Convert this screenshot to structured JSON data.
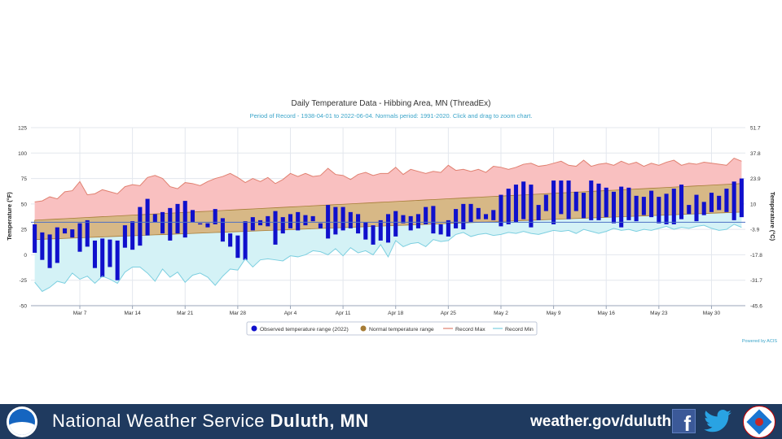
{
  "chart_data": {
    "type": "bar",
    "title": "Daily Temperature Data - Hibbing Area, MN (ThreadEx)",
    "subtitle": "Period of Record - 1938-04-01 to 2022-06-04. Normals period: 1991-2020. Click and drag to zoom chart.",
    "ylabel_left": "Temperature (°F)",
    "ylabel_right": "Temperature (°C)",
    "ylim": [
      -50,
      125
    ],
    "yticks_left": [
      "125",
      "100",
      "75",
      "50",
      "25",
      "0",
      "-25",
      "-50"
    ],
    "yticks_right": [
      "51.7",
      "37.8",
      "23.9",
      "10",
      "-3.9",
      "-17.8",
      "-31.7",
      "-45.6"
    ],
    "x_tick_labels": [
      {
        "day": 7,
        "label": "Mar 7"
      },
      {
        "day": 14,
        "label": "Mar 14"
      },
      {
        "day": 21,
        "label": "Mar 21"
      },
      {
        "day": 28,
        "label": "Mar 28"
      },
      {
        "day": 35,
        "label": "Apr 4"
      },
      {
        "day": 42,
        "label": "Apr 11"
      },
      {
        "day": 49,
        "label": "Apr 18"
      },
      {
        "day": 56,
        "label": "Apr 25"
      },
      {
        "day": 63,
        "label": "May 2"
      },
      {
        "day": 70,
        "label": "May 9"
      },
      {
        "day": 77,
        "label": "May 16"
      },
      {
        "day": 84,
        "label": "May 23"
      },
      {
        "day": 91,
        "label": "May 30"
      }
    ],
    "freezing_line": 32,
    "grid": true,
    "legend_position": "bottom-center",
    "colors": {
      "observed": "#1010cc",
      "normal_band": "#d7b886",
      "normal_edge": "#a67c36",
      "record_max_fill": "#f9c0c0",
      "record_max_line": "#e08070",
      "record_min_fill": "#d4f2f6",
      "record_min_line": "#7ccfe0"
    },
    "series": [
      {
        "name": "Observed temperature range (2022)",
        "ranges": [
          [
            2,
            30
          ],
          [
            -5,
            22
          ],
          [
            -13,
            20
          ],
          [
            -8,
            27
          ],
          [
            21,
            26
          ],
          [
            17,
            25
          ],
          [
            3,
            31
          ],
          [
            8,
            34
          ],
          [
            -13,
            14
          ],
          [
            -22,
            16
          ],
          [
            -12,
            15
          ],
          [
            -25,
            14
          ],
          [
            7,
            29
          ],
          [
            5,
            33
          ],
          [
            9,
            47
          ],
          [
            19,
            55
          ],
          [
            32,
            40
          ],
          [
            21,
            42
          ],
          [
            14,
            46
          ],
          [
            21,
            50
          ],
          [
            17,
            53
          ],
          [
            32,
            44
          ],
          [
            30,
            31
          ],
          [
            27,
            31
          ],
          [
            30,
            45
          ],
          [
            13,
            36
          ],
          [
            8,
            21
          ],
          [
            -3,
            19
          ],
          [
            -5,
            33
          ],
          [
            24,
            37
          ],
          [
            29,
            34
          ],
          [
            28,
            38
          ],
          [
            10,
            43
          ],
          [
            21,
            37
          ],
          [
            26,
            40
          ],
          [
            24,
            42
          ],
          [
            29,
            39
          ],
          [
            33,
            38
          ],
          [
            26,
            31
          ],
          [
            16,
            49
          ],
          [
            20,
            47
          ],
          [
            24,
            47
          ],
          [
            26,
            42
          ],
          [
            21,
            40
          ],
          [
            15,
            32
          ],
          [
            10,
            29
          ],
          [
            14,
            34
          ],
          [
            12,
            40
          ],
          [
            18,
            43
          ],
          [
            31,
            39
          ],
          [
            24,
            38
          ],
          [
            26,
            40
          ],
          [
            30,
            47
          ],
          [
            21,
            48
          ],
          [
            20,
            30
          ],
          [
            18,
            34
          ],
          [
            26,
            45
          ],
          [
            25,
            50
          ],
          [
            32,
            50
          ],
          [
            35,
            46
          ],
          [
            35,
            40
          ],
          [
            34,
            44
          ],
          [
            28,
            59
          ],
          [
            30,
            65
          ],
          [
            32,
            69
          ],
          [
            35,
            72
          ],
          [
            27,
            69
          ],
          [
            34,
            49
          ],
          [
            43,
            59
          ],
          [
            30,
            73
          ],
          [
            40,
            73
          ],
          [
            35,
            73
          ],
          [
            43,
            62
          ],
          [
            36,
            61
          ],
          [
            34,
            73
          ],
          [
            34,
            70
          ],
          [
            37,
            66
          ],
          [
            31,
            62
          ],
          [
            27,
            67
          ],
          [
            34,
            66
          ],
          [
            33,
            58
          ],
          [
            39,
            57
          ],
          [
            37,
            63
          ],
          [
            31,
            57
          ],
          [
            30,
            60
          ],
          [
            30,
            65
          ],
          [
            35,
            69
          ],
          [
            40,
            49
          ],
          [
            33,
            59
          ],
          [
            39,
            52
          ],
          [
            42,
            61
          ],
          [
            44,
            58
          ],
          [
            42,
            65
          ],
          [
            34,
            72
          ],
          [
            37,
            75
          ]
        ]
      },
      {
        "name": "Normal temperature range",
        "low_start": 15,
        "low_end": 42,
        "high_start": 34,
        "high_end": 70
      },
      {
        "name": "Record Max",
        "values": [
          52,
          53,
          57,
          55,
          62,
          63,
          72,
          59,
          60,
          64,
          62,
          60,
          67,
          69,
          68,
          76,
          78,
          75,
          67,
          65,
          71,
          70,
          68,
          72,
          75,
          77,
          80,
          76,
          71,
          75,
          72,
          76,
          70,
          74,
          80,
          77,
          80,
          77,
          78,
          85,
          79,
          78,
          74,
          79,
          81,
          78,
          80,
          80,
          86,
          79,
          84,
          82,
          80,
          82,
          81,
          88,
          83,
          84,
          82,
          84,
          81,
          87,
          86,
          84,
          86,
          89,
          90,
          87,
          88,
          90,
          92,
          88,
          87,
          93,
          87,
          89,
          90,
          88,
          92,
          89,
          91,
          87,
          90,
          88,
          91,
          93,
          88,
          90,
          89,
          91,
          90,
          89,
          88,
          95,
          92
        ]
      },
      {
        "name": "Record Min",
        "values": [
          -27,
          -36,
          -32,
          -26,
          -28,
          -18,
          -24,
          -21,
          -28,
          -21,
          -24,
          -28,
          -17,
          -12,
          -12,
          -18,
          -26,
          -14,
          -22,
          -17,
          -27,
          -20,
          -18,
          -22,
          -30,
          -21,
          -14,
          -15,
          -4,
          -12,
          -5,
          -4,
          -5,
          -6,
          -1,
          -2,
          0,
          4,
          3,
          0,
          6,
          -1,
          7,
          2,
          4,
          0,
          10,
          -2,
          14,
          8,
          11,
          12,
          8,
          15,
          13,
          14,
          20,
          22,
          18,
          20,
          21,
          19,
          20,
          22,
          21,
          23,
          21,
          20,
          22,
          24,
          23,
          24,
          21,
          25,
          23,
          21,
          23,
          26,
          24,
          25,
          23,
          25,
          24,
          26,
          28,
          25,
          27,
          26,
          28,
          29,
          26,
          24,
          25,
          30,
          27
        ]
      }
    ]
  },
  "legend": {
    "observed": "Observed temperature range (2022)",
    "normal": "Normal temperature range",
    "record_max": "Record Max",
    "record_min": "Record Min"
  },
  "credit": "Powered by ACIS",
  "footer": {
    "title_prefix": "National Weather Service",
    "title_location": "Duluth, MN",
    "website": "weather.gov/duluth",
    "facebook_icon_glyph": "f",
    "icons": [
      "noaa-logo-icon",
      "facebook-icon",
      "twitter-icon",
      "nws-logo-icon"
    ],
    "background_color": "#1f3a5f"
  }
}
